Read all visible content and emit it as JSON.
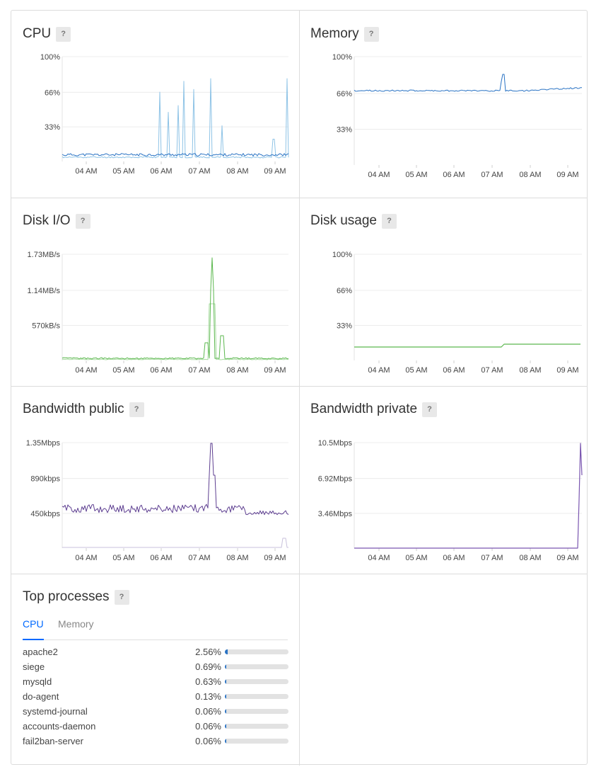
{
  "help_label": "?",
  "charts": {
    "cpu": {
      "title": "CPU",
      "yticks": [
        "100%",
        "66%",
        "33%"
      ],
      "xticks": [
        "04 AM",
        "05 AM",
        "06 AM",
        "07 AM",
        "08 AM",
        "09 AM"
      ],
      "color": "#2a73c4",
      "secondary_color": "#8ec3e6"
    },
    "memory": {
      "title": "Memory",
      "yticks": [
        "100%",
        "66%",
        "33%"
      ],
      "xticks": [
        "04 AM",
        "05 AM",
        "06 AM",
        "07 AM",
        "08 AM",
        "09 AM"
      ],
      "color": "#2a73c4"
    },
    "disk_io": {
      "title": "Disk I/O",
      "yticks": [
        "1.73MB/s",
        "1.14MB/s",
        "570kB/s"
      ],
      "xticks": [
        "04 AM",
        "05 AM",
        "06 AM",
        "07 AM",
        "08 AM",
        "09 AM"
      ],
      "color": "#5cb84f",
      "secondary_color": "#a8dba0"
    },
    "disk_usage": {
      "title": "Disk usage",
      "yticks": [
        "100%",
        "66%",
        "33%"
      ],
      "xticks": [
        "04 AM",
        "05 AM",
        "06 AM",
        "07 AM",
        "08 AM",
        "09 AM"
      ],
      "color": "#5cb84f"
    },
    "bw_public": {
      "title": "Bandwidth public",
      "yticks": [
        "1.35Mbps",
        "890kbps",
        "450kbps"
      ],
      "xticks": [
        "04 AM",
        "05 AM",
        "06 AM",
        "07 AM",
        "08 AM",
        "09 AM"
      ],
      "color": "#5e3f91",
      "secondary_color": "#c9c2dc"
    },
    "bw_private": {
      "title": "Bandwidth private",
      "yticks": [
        "10.5Mbps",
        "6.92Mbps",
        "3.46Mbps"
      ],
      "xticks": [
        "04 AM",
        "05 AM",
        "06 AM",
        "07 AM",
        "08 AM",
        "09 AM"
      ],
      "color": "#7a56b0"
    }
  },
  "top_processes": {
    "title": "Top processes",
    "tabs": [
      {
        "label": "CPU",
        "active": true
      },
      {
        "label": "Memory",
        "active": false
      }
    ],
    "rows": [
      {
        "name": "apache2",
        "value_label": "2.56%",
        "value": 2.56
      },
      {
        "name": "siege",
        "value_label": "0.69%",
        "value": 0.69
      },
      {
        "name": "mysqld",
        "value_label": "0.63%",
        "value": 0.63
      },
      {
        "name": "do-agent",
        "value_label": "0.13%",
        "value": 0.13
      },
      {
        "name": "systemd-journal",
        "value_label": "0.06%",
        "value": 0.06
      },
      {
        "name": "accounts-daemon",
        "value_label": "0.06%",
        "value": 0.06
      },
      {
        "name": "fail2ban-server",
        "value_label": "0.06%",
        "value": 0.06
      }
    ]
  }
}
